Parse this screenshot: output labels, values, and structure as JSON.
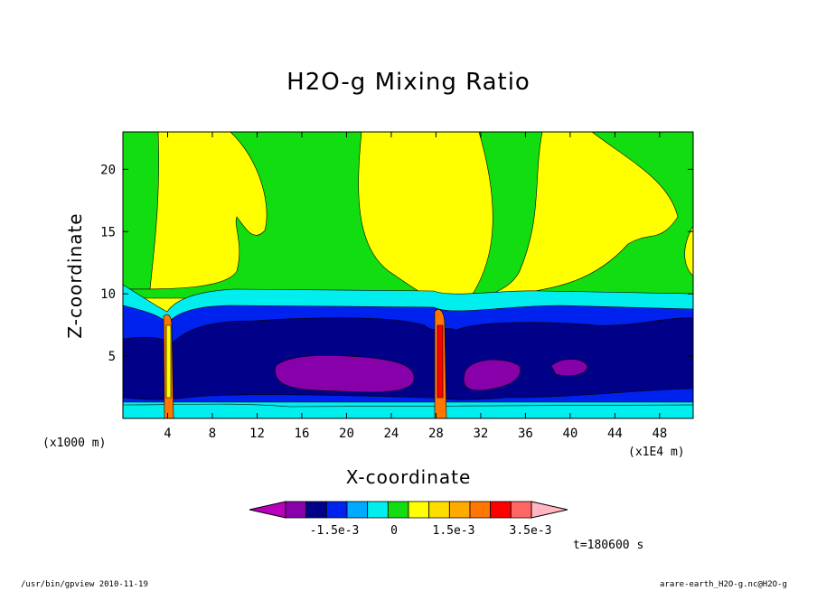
{
  "title": "H2O-g Mixing Ratio",
  "chart_data": {
    "type": "heatmap",
    "title": "H2O-g Mixing Ratio",
    "xlabel": "X-coordinate",
    "ylabel": "Z-coordinate",
    "x_unit": "(x1E4 m)",
    "y_unit": "(x1000 m)",
    "xlim": [
      0,
      51
    ],
    "ylim": [
      0,
      23
    ],
    "x_ticks": [
      "4",
      "8",
      "12",
      "16",
      "20",
      "24",
      "28",
      "32",
      "36",
      "40",
      "44",
      "48"
    ],
    "y_ticks": [
      "5",
      "10",
      "15",
      "20"
    ],
    "legend_labels": [
      "-1.5e-3",
      "0",
      "1.5e-3",
      "3.5e-3"
    ],
    "legend_colors": [
      "#bb00bb",
      "#8800aa",
      "#000088",
      "#0022ee",
      "#00aaff",
      "#00eeee",
      "#11dd11",
      "#ffff00",
      "#ffdd00",
      "#ffaa00",
      "#ff7700",
      "#ff0000",
      "#ff6666",
      "#ffb6c1"
    ],
    "time_label": "t=180600 s"
  },
  "footer": {
    "left": "/usr/bin/gpview  2010-11-19",
    "right": "arare-earth_H2O-g.nc@H2O-g"
  }
}
